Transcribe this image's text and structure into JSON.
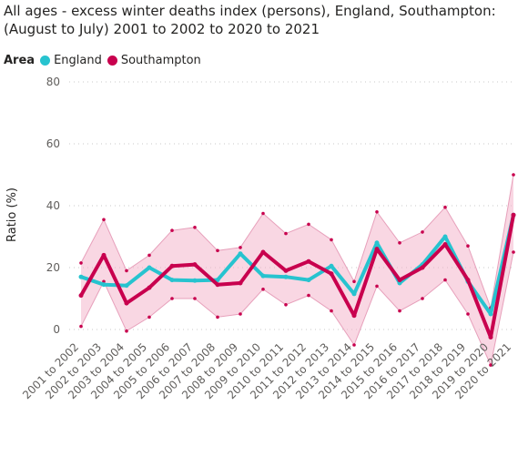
{
  "title": "All ages - excess winter deaths index (persons), England, Southampton: (August to July) 2001 to 2002 to 2020 to 2021",
  "legend": {
    "title": "Area",
    "items": [
      {
        "label": "England",
        "color": "#27C3CF"
      },
      {
        "label": "Southampton",
        "color": "#C8004E"
      }
    ]
  },
  "chart_data": {
    "type": "line",
    "categories": [
      "2001 to 2002",
      "2002 to 2003",
      "2003 to 2004",
      "2004 to 2005",
      "2005 to 2006",
      "2006 to 2007",
      "2007 to 2008",
      "2008 to 2009",
      "2009 to 2010",
      "2010 to 2011",
      "2011 to 2012",
      "2012 to 2013",
      "2013 to 2014",
      "2014 to 2015",
      "2015 to 2016",
      "2016 to 2017",
      "2017 to 2018",
      "2018 to 2019",
      "2019 to 2020",
      "2020 to 2021"
    ],
    "ylabel": "Ratio (%)",
    "ylim": [
      0,
      80
    ],
    "yticks": [
      "0",
      "20",
      "40",
      "60",
      "80"
    ],
    "grid": true,
    "series": [
      {
        "name": "England",
        "color": "#27C3CF",
        "values": [
          17,
          14.5,
          14.2,
          20,
          16,
          15.8,
          16,
          24.5,
          17.3,
          17,
          16,
          20.5,
          11.5,
          28,
          15,
          21,
          30,
          15.5,
          5,
          37
        ]
      },
      {
        "name": "Southampton",
        "color": "#C8004E",
        "values": [
          11,
          24,
          8.5,
          13.5,
          20.5,
          21,
          14.5,
          15,
          25,
          19,
          22,
          18,
          4.5,
          26,
          16,
          20,
          27.5,
          16,
          -2.5,
          37
        ],
        "ci_lower": [
          1,
          15.5,
          -0.5,
          4,
          10,
          10,
          4,
          5,
          13,
          8,
          11,
          6,
          -5,
          14,
          6,
          10,
          16,
          5,
          -11.5,
          25
        ],
        "ci_upper": [
          21.5,
          35.5,
          19,
          24,
          32,
          33,
          25.5,
          26.5,
          37.5,
          31,
          34,
          29,
          15.5,
          38,
          28,
          31.5,
          39.5,
          27,
          7,
          50
        ],
        "ci_color": "#F4B6CC"
      }
    ]
  }
}
